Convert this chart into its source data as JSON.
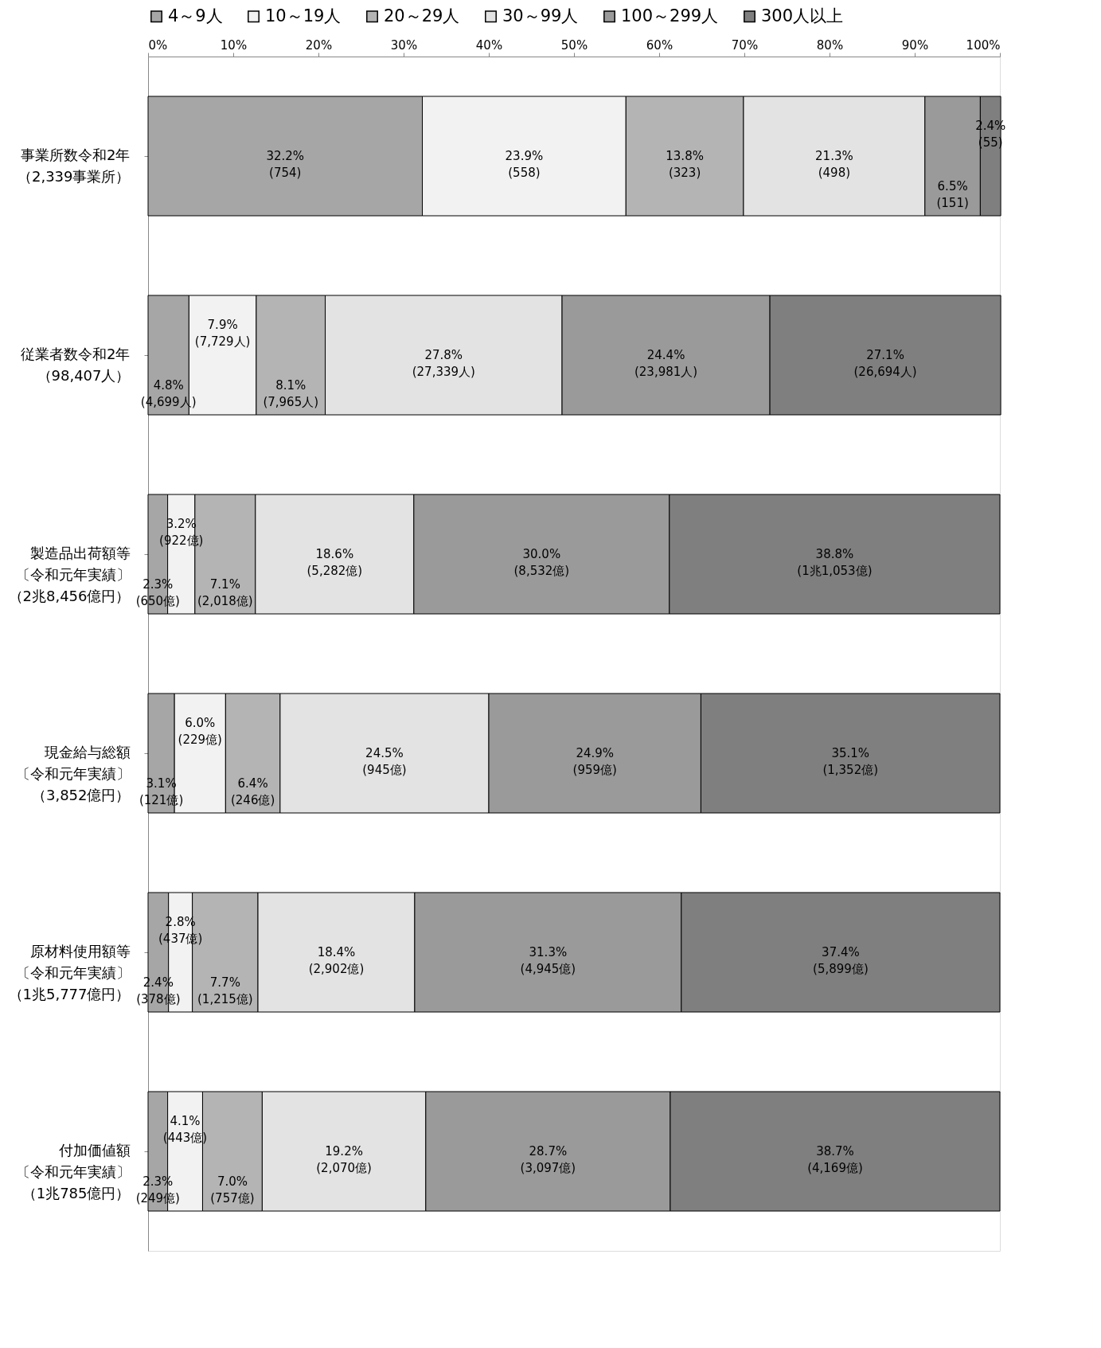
{
  "chart_data": {
    "type": "bar",
    "orientation": "horizontal",
    "stacked": true,
    "legend": "top",
    "grid": false,
    "categories": [
      "事業所数令和2年（2,339事業所）",
      "従業者数令和2年（98,407人）",
      "製造品出荷額等〔令和元年実績〕（2兆8,456億円）",
      "現金給与総額〔令和元年実績〕（3,852億円）",
      "原材料使用額等〔令和元年実績〕（1兆5,777億円）",
      "付加価値額〔令和元年実績〕（1兆785億円）"
    ],
    "xlim": [
      0,
      100
    ],
    "xticks": [
      {
        "value": 0,
        "label": "0%"
      },
      {
        "value": 10,
        "label": "10%"
      },
      {
        "value": 20,
        "label": "20%"
      },
      {
        "value": 30,
        "label": "30%"
      },
      {
        "value": 40,
        "label": "40%"
      },
      {
        "value": 50,
        "label": "50%"
      },
      {
        "value": 60,
        "label": "60%"
      },
      {
        "value": 70,
        "label": "70%"
      },
      {
        "value": 80,
        "label": "80%"
      },
      {
        "value": 90,
        "label": "90%"
      },
      {
        "value": 100,
        "label": "100%"
      }
    ],
    "series": [
      {
        "name": "4～9人",
        "color": "#a6a6a6",
        "values": [
          32.2,
          4.8,
          2.3,
          3.1,
          2.4,
          2.3
        ],
        "value_labels": [
          "32.2%\n(754)",
          "4.8%\n(4,699人)",
          "2.3%\n(650億)",
          "3.1%\n(121億)",
          "2.4%\n(378億)",
          "2.3%\n(249億)"
        ]
      },
      {
        "name": "10～19人",
        "color": "#f2f2f2",
        "values": [
          23.9,
          7.9,
          3.2,
          6.0,
          2.8,
          4.1
        ],
        "value_labels": [
          "23.9%\n(558)",
          "7.9%\n(7,729人)",
          "3.2%\n(922億)",
          "6.0%\n(229億)",
          "2.8%\n(437億)",
          "4.1%\n(443億)"
        ]
      },
      {
        "name": "20～29人",
        "color": "#b4b4b4",
        "values": [
          13.8,
          8.1,
          7.1,
          6.4,
          7.7,
          7.0
        ],
        "value_labels": [
          "13.8%\n(323)",
          "8.1%\n(7,965人)",
          "7.1%\n(2,018億)",
          "6.4%\n(246億)",
          "7.7%\n(1,215億)",
          "7.0%\n(757億)"
        ]
      },
      {
        "name": "30～99人",
        "color": "#e3e3e3",
        "values": [
          21.3,
          27.8,
          18.6,
          24.5,
          18.4,
          19.2
        ],
        "value_labels": [
          "21.3%\n(498)",
          "27.8%\n(27,339人)",
          "18.6%\n(5,282億)",
          "24.5%\n(945億)",
          "18.4%\n(2,902億)",
          "19.2%\n(2,070億)"
        ]
      },
      {
        "name": "100～299人",
        "color": "#9a9a9a",
        "values": [
          6.5,
          24.4,
          30.0,
          24.9,
          31.3,
          28.7
        ],
        "value_labels": [
          "6.5%\n(151)",
          "24.4%\n(23,981人)",
          "30.0%\n(8,532億)",
          "24.9%\n(959億)",
          "31.3%\n(4,945億)",
          "28.7%\n(3,097億)"
        ]
      },
      {
        "name": "300人以上",
        "color": "#7f7f7f",
        "values": [
          2.4,
          27.1,
          38.8,
          35.1,
          37.4,
          38.7
        ],
        "value_labels": [
          "2.4%\n(55)",
          "27.1%\n(26,694人)",
          "38.8%\n(1兆1,053億)",
          "35.1%\n(1,352億)",
          "37.4%\n(5,899億)",
          "38.7%\n(4,169億)"
        ]
      }
    ]
  }
}
